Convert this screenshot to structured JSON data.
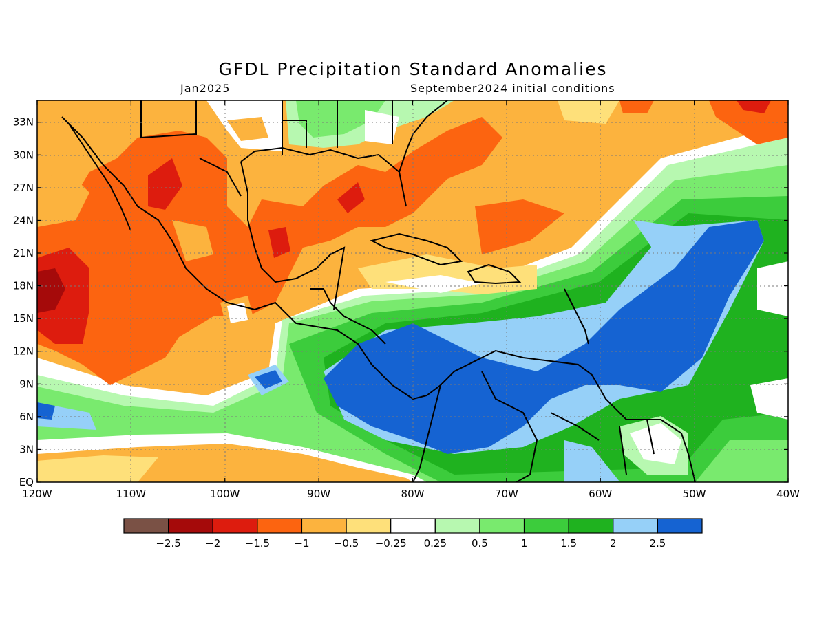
{
  "title": "GFDL Precipitation Standard Anomalies",
  "subtitle_left": "Jan2025",
  "subtitle_right": "September2024 initial conditions",
  "lat_labels": [
    "33N",
    "30N",
    "27N",
    "24N",
    "21N",
    "18N",
    "15N",
    "12N",
    "9N",
    "6N",
    "3N",
    "EQ"
  ],
  "lon_labels": [
    "120W",
    "110W",
    "100W",
    "90W",
    "80W",
    "70W",
    "60W",
    "50W",
    "40W"
  ],
  "colorbar": {
    "colors": [
      "#7a5145",
      "#a50a0a",
      "#dd1c0e",
      "#fc6410",
      "#fcb33e",
      "#fee07a",
      "#ffffff",
      "#b7f8b0",
      "#79ea6e",
      "#3ccc3c",
      "#1fb21f",
      "#96d0f8",
      "#1563d2"
    ],
    "labels": [
      "-2.5",
      "-2",
      "-1.5",
      "-1",
      "-0.5",
      "-0.25",
      "0.25",
      "0.5",
      "1",
      "1.5",
      "2",
      "2.5"
    ]
  },
  "map": {
    "lat_range": [
      0,
      35
    ],
    "lon_range": [
      -120,
      -40
    ],
    "grid": "dotted"
  }
}
